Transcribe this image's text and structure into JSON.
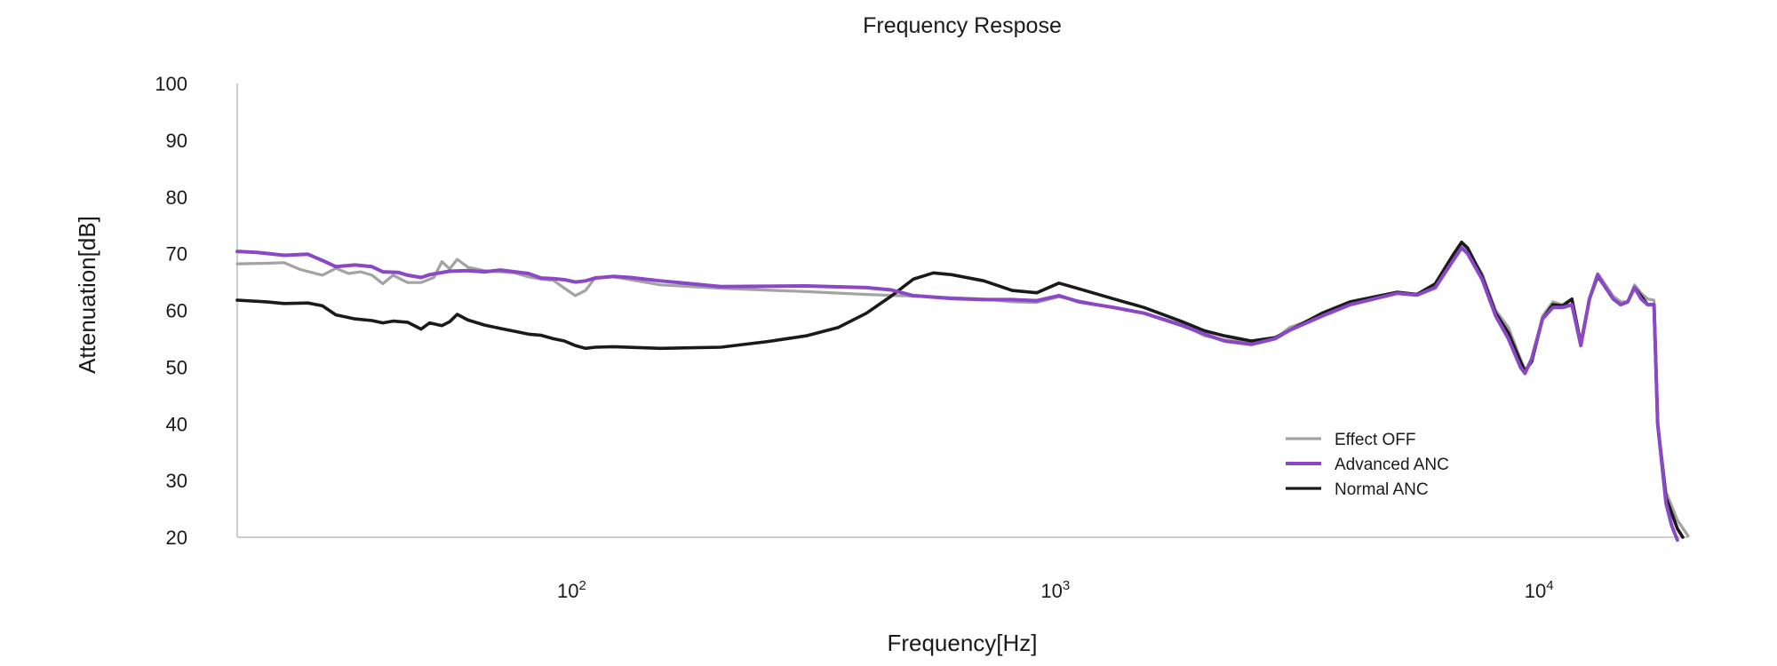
{
  "chart_data": {
    "type": "line",
    "title": "Frequency Respose",
    "xlabel": "Frequency[Hz]",
    "ylabel": "Attenuation[dB]",
    "x_scale": "log",
    "xlim": [
      20,
      20000
    ],
    "ylim": [
      20,
      100
    ],
    "grid": false,
    "legend_position": "bottom-right",
    "x_ticks": [
      {
        "value": 100,
        "base": "10",
        "exp": "2"
      },
      {
        "value": 1000,
        "base": "10",
        "exp": "3"
      },
      {
        "value": 10000,
        "base": "10",
        "exp": "4"
      }
    ],
    "y_ticks": [
      {
        "value": 100,
        "label": "100"
      },
      {
        "value": 90,
        "label": "90"
      },
      {
        "value": 80,
        "label": "80"
      },
      {
        "value": 70,
        "label": "70"
      },
      {
        "value": 60,
        "label": "60"
      },
      {
        "value": 50,
        "label": "50"
      },
      {
        "value": 40,
        "label": "40"
      },
      {
        "value": 30,
        "label": "30"
      },
      {
        "value": 20,
        "label": "20"
      }
    ],
    "series": [
      {
        "name": "Effect OFF",
        "color": "#a3a3a3",
        "points": [
          [
            20,
            68.2
          ],
          [
            23,
            68.3
          ],
          [
            25,
            68.4
          ],
          [
            27,
            67.2
          ],
          [
            30,
            66.2
          ],
          [
            32,
            67.4
          ],
          [
            34,
            66.5
          ],
          [
            36,
            66.8
          ],
          [
            38,
            66.2
          ],
          [
            40,
            64.7
          ],
          [
            42,
            66.2
          ],
          [
            45,
            64.9
          ],
          [
            48,
            64.9
          ],
          [
            51,
            65.8
          ],
          [
            53,
            68.6
          ],
          [
            55,
            67.3
          ],
          [
            57,
            69.0
          ],
          [
            60,
            67.6
          ],
          [
            65,
            67.0
          ],
          [
            70,
            66.8
          ],
          [
            75,
            66.6
          ],
          [
            80,
            65.9
          ],
          [
            85,
            65.5
          ],
          [
            90,
            65.3
          ],
          [
            95,
            63.9
          ],
          [
            100,
            62.6
          ],
          [
            105,
            63.5
          ],
          [
            110,
            65.8
          ],
          [
            120,
            65.9
          ],
          [
            150,
            64.5
          ],
          [
            200,
            63.9
          ],
          [
            300,
            63.3
          ],
          [
            400,
            62.8
          ],
          [
            500,
            62.5
          ],
          [
            700,
            62.0
          ],
          [
            800,
            61.5
          ],
          [
            900,
            61.4
          ],
          [
            1000,
            62.4
          ],
          [
            1200,
            61.0
          ],
          [
            1500,
            59.5
          ],
          [
            1800,
            57.5
          ],
          [
            2000,
            55.5
          ],
          [
            2200,
            54.8
          ],
          [
            2500,
            54.3
          ],
          [
            2800,
            55.0
          ],
          [
            3000,
            57.0
          ],
          [
            3500,
            59.0
          ],
          [
            4000,
            61.5
          ],
          [
            5000,
            63.2
          ],
          [
            5500,
            62.8
          ],
          [
            6000,
            64.5
          ],
          [
            6500,
            69.0
          ],
          [
            6800,
            71.5
          ],
          [
            7000,
            70.5
          ],
          [
            7500,
            66.5
          ],
          [
            8000,
            60.0
          ],
          [
            8500,
            57.0
          ],
          [
            9000,
            51.5
          ],
          [
            9200,
            49.5
          ],
          [
            9500,
            51.0
          ],
          [
            10000,
            59.0
          ],
          [
            10500,
            61.5
          ],
          [
            11000,
            61.0
          ],
          [
            11500,
            62.0
          ],
          [
            12000,
            54.5
          ],
          [
            12500,
            62.0
          ],
          [
            13000,
            66.5
          ],
          [
            13500,
            64.5
          ],
          [
            14000,
            62.5
          ],
          [
            14500,
            61.5
          ],
          [
            15000,
            61.5
          ],
          [
            15500,
            64.5
          ],
          [
            16000,
            63.0
          ],
          [
            16500,
            62.0
          ],
          [
            17000,
            61.8
          ],
          [
            17300,
            40.0
          ],
          [
            18000,
            28.0
          ],
          [
            19000,
            23.0
          ],
          [
            20000,
            20.2
          ]
        ]
      },
      {
        "name": "Advanced ANC",
        "color": "#8a47c6",
        "points": [
          [
            20,
            70.4
          ],
          [
            22,
            70.2
          ],
          [
            25,
            69.7
          ],
          [
            28,
            69.9
          ],
          [
            30,
            68.8
          ],
          [
            32,
            67.7
          ],
          [
            35,
            68.0
          ],
          [
            38,
            67.7
          ],
          [
            40,
            66.8
          ],
          [
            43,
            66.7
          ],
          [
            45,
            66.2
          ],
          [
            48,
            65.8
          ],
          [
            50,
            66.3
          ],
          [
            55,
            66.9
          ],
          [
            60,
            67.0
          ],
          [
            65,
            66.8
          ],
          [
            70,
            67.1
          ],
          [
            75,
            66.8
          ],
          [
            80,
            66.5
          ],
          [
            85,
            65.7
          ],
          [
            90,
            65.6
          ],
          [
            95,
            65.4
          ],
          [
            100,
            65.0
          ],
          [
            105,
            65.2
          ],
          [
            110,
            65.7
          ],
          [
            120,
            66.0
          ],
          [
            130,
            65.8
          ],
          [
            150,
            65.2
          ],
          [
            200,
            64.2
          ],
          [
            300,
            64.3
          ],
          [
            400,
            64.0
          ],
          [
            450,
            63.6
          ],
          [
            500,
            62.6
          ],
          [
            600,
            62.1
          ],
          [
            700,
            61.9
          ],
          [
            800,
            61.9
          ],
          [
            900,
            61.7
          ],
          [
            1000,
            62.6
          ],
          [
            1100,
            61.5
          ],
          [
            1300,
            60.5
          ],
          [
            1500,
            59.5
          ],
          [
            1800,
            57.3
          ],
          [
            2000,
            55.8
          ],
          [
            2200,
            54.6
          ],
          [
            2500,
            54.0
          ],
          [
            2800,
            55.0
          ],
          [
            3000,
            56.5
          ],
          [
            3500,
            59.0
          ],
          [
            4000,
            61.0
          ],
          [
            5000,
            63.0
          ],
          [
            5500,
            62.7
          ],
          [
            6000,
            64.0
          ],
          [
            6500,
            68.5
          ],
          [
            6800,
            71.0
          ],
          [
            7000,
            70.0
          ],
          [
            7500,
            65.5
          ],
          [
            8000,
            59.0
          ],
          [
            8500,
            55.0
          ],
          [
            9000,
            50.0
          ],
          [
            9200,
            48.9
          ],
          [
            9500,
            51.5
          ],
          [
            10000,
            58.5
          ],
          [
            10500,
            60.5
          ],
          [
            11000,
            60.5
          ],
          [
            11500,
            61.0
          ],
          [
            12000,
            53.8
          ],
          [
            12500,
            62.0
          ],
          [
            13000,
            66.3
          ],
          [
            13500,
            64.0
          ],
          [
            14000,
            62.0
          ],
          [
            14500,
            61.0
          ],
          [
            15000,
            61.5
          ],
          [
            15500,
            64.0
          ],
          [
            16000,
            62.0
          ],
          [
            16500,
            61.0
          ],
          [
            17000,
            61.0
          ],
          [
            17300,
            40.0
          ],
          [
            18000,
            26.0
          ],
          [
            18500,
            22.0
          ],
          [
            19000,
            19.5
          ]
        ]
      },
      {
        "name": "Normal ANC",
        "color": "#1a1a1a",
        "points": [
          [
            20,
            61.8
          ],
          [
            23,
            61.5
          ],
          [
            25,
            61.2
          ],
          [
            28,
            61.3
          ],
          [
            30,
            60.8
          ],
          [
            32,
            59.2
          ],
          [
            35,
            58.5
          ],
          [
            38,
            58.2
          ],
          [
            40,
            57.8
          ],
          [
            42,
            58.1
          ],
          [
            45,
            57.9
          ],
          [
            48,
            56.7
          ],
          [
            50,
            57.8
          ],
          [
            53,
            57.3
          ],
          [
            55,
            58.0
          ],
          [
            57,
            59.3
          ],
          [
            60,
            58.3
          ],
          [
            65,
            57.4
          ],
          [
            70,
            56.8
          ],
          [
            75,
            56.3
          ],
          [
            80,
            55.8
          ],
          [
            85,
            55.6
          ],
          [
            90,
            55.0
          ],
          [
            95,
            54.6
          ],
          [
            100,
            53.8
          ],
          [
            105,
            53.3
          ],
          [
            110,
            53.5
          ],
          [
            120,
            53.6
          ],
          [
            150,
            53.3
          ],
          [
            200,
            53.5
          ],
          [
            250,
            54.5
          ],
          [
            300,
            55.5
          ],
          [
            350,
            57.0
          ],
          [
            400,
            59.5
          ],
          [
            450,
            62.5
          ],
          [
            500,
            65.5
          ],
          [
            550,
            66.6
          ],
          [
            600,
            66.3
          ],
          [
            700,
            65.2
          ],
          [
            800,
            63.5
          ],
          [
            900,
            63.1
          ],
          [
            1000,
            64.8
          ],
          [
            1100,
            63.8
          ],
          [
            1300,
            62.0
          ],
          [
            1500,
            60.5
          ],
          [
            1800,
            58.0
          ],
          [
            2000,
            56.4
          ],
          [
            2200,
            55.5
          ],
          [
            2500,
            54.6
          ],
          [
            2800,
            55.2
          ],
          [
            3000,
            56.5
          ],
          [
            3500,
            59.5
          ],
          [
            4000,
            61.5
          ],
          [
            5000,
            63.2
          ],
          [
            5500,
            62.8
          ],
          [
            6000,
            64.7
          ],
          [
            6500,
            69.5
          ],
          [
            6800,
            72.0
          ],
          [
            7000,
            71.0
          ],
          [
            7500,
            66.0
          ],
          [
            8000,
            59.5
          ],
          [
            8500,
            56.0
          ],
          [
            9000,
            51.0
          ],
          [
            9200,
            49.3
          ],
          [
            9500,
            51.0
          ],
          [
            10000,
            58.5
          ],
          [
            10500,
            61.0
          ],
          [
            11000,
            60.8
          ],
          [
            11500,
            62.0
          ],
          [
            12000,
            54.0
          ],
          [
            12500,
            62.0
          ],
          [
            13000,
            66.0
          ],
          [
            13500,
            64.0
          ],
          [
            14000,
            62.0
          ],
          [
            14500,
            61.0
          ],
          [
            15000,
            61.5
          ],
          [
            15500,
            64.0
          ],
          [
            16000,
            62.5
          ],
          [
            16500,
            61.0
          ],
          [
            17000,
            61.0
          ],
          [
            17300,
            40.0
          ],
          [
            18000,
            27.0
          ],
          [
            19000,
            21.5
          ],
          [
            19500,
            20.0
          ]
        ]
      }
    ]
  }
}
